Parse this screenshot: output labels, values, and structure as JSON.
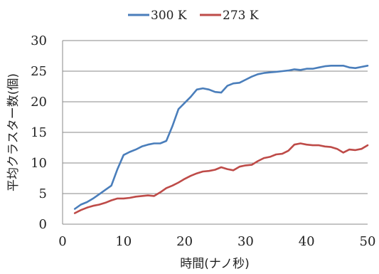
{
  "chart_data": {
    "type": "line",
    "title": "",
    "xlabel": "時間(ナノ秒)",
    "ylabel": "平均クラスター数(個)",
    "xlim": [
      0,
      50
    ],
    "ylim": [
      0,
      30
    ],
    "x_ticks": [
      "0",
      "10",
      "20",
      "30",
      "40",
      "50"
    ],
    "y_ticks": [
      "0",
      "5",
      "10",
      "15",
      "20",
      "25",
      "30"
    ],
    "grid": true,
    "legend_position": "top",
    "series": [
      {
        "name": "300 K",
        "color": "#4a7ebb",
        "points": [
          [
            2,
            2.5
          ],
          [
            3,
            3.2
          ],
          [
            4,
            3.6
          ],
          [
            5,
            4.2
          ],
          [
            6,
            4.9
          ],
          [
            7,
            5.6
          ],
          [
            8,
            6.3
          ],
          [
            9,
            9.0
          ],
          [
            10,
            11.3
          ],
          [
            11,
            11.8
          ],
          [
            12,
            12.2
          ],
          [
            13,
            12.7
          ],
          [
            14,
            13.0
          ],
          [
            15,
            13.2
          ],
          [
            16,
            13.2
          ],
          [
            17,
            13.6
          ],
          [
            18,
            16.0
          ],
          [
            19,
            18.8
          ],
          [
            20,
            19.8
          ],
          [
            21,
            20.8
          ],
          [
            22,
            22.0
          ],
          [
            23,
            22.2
          ],
          [
            24,
            22.0
          ],
          [
            25,
            21.6
          ],
          [
            26,
            21.5
          ],
          [
            27,
            22.6
          ],
          [
            28,
            23.0
          ],
          [
            29,
            23.1
          ],
          [
            30,
            23.6
          ],
          [
            31,
            24.1
          ],
          [
            32,
            24.5
          ],
          [
            33,
            24.7
          ],
          [
            34,
            24.8
          ],
          [
            35,
            24.9
          ],
          [
            36,
            25.0
          ],
          [
            37,
            25.1
          ],
          [
            38,
            25.3
          ],
          [
            39,
            25.2
          ],
          [
            40,
            25.4
          ],
          [
            41,
            25.4
          ],
          [
            42,
            25.6
          ],
          [
            43,
            25.8
          ],
          [
            44,
            25.9
          ],
          [
            45,
            25.9
          ],
          [
            46,
            25.9
          ],
          [
            47,
            25.6
          ],
          [
            48,
            25.5
          ],
          [
            49,
            25.7
          ],
          [
            50,
            25.9
          ]
        ]
      },
      {
        "name": "273 K",
        "color": "#be4b48",
        "points": [
          [
            2,
            1.8
          ],
          [
            3,
            2.3
          ],
          [
            4,
            2.7
          ],
          [
            5,
            3.0
          ],
          [
            6,
            3.2
          ],
          [
            7,
            3.5
          ],
          [
            8,
            3.9
          ],
          [
            9,
            4.2
          ],
          [
            10,
            4.2
          ],
          [
            11,
            4.3
          ],
          [
            12,
            4.5
          ],
          [
            13,
            4.6
          ],
          [
            14,
            4.7
          ],
          [
            15,
            4.6
          ],
          [
            16,
            5.2
          ],
          [
            17,
            5.9
          ],
          [
            18,
            6.3
          ],
          [
            19,
            6.8
          ],
          [
            20,
            7.4
          ],
          [
            21,
            7.9
          ],
          [
            22,
            8.3
          ],
          [
            23,
            8.6
          ],
          [
            24,
            8.7
          ],
          [
            25,
            8.9
          ],
          [
            26,
            9.3
          ],
          [
            27,
            9.0
          ],
          [
            28,
            8.8
          ],
          [
            29,
            9.4
          ],
          [
            30,
            9.6
          ],
          [
            31,
            9.7
          ],
          [
            32,
            10.3
          ],
          [
            33,
            10.8
          ],
          [
            34,
            11.0
          ],
          [
            35,
            11.4
          ],
          [
            36,
            11.5
          ],
          [
            37,
            12.0
          ],
          [
            38,
            13.0
          ],
          [
            39,
            13.2
          ],
          [
            40,
            13.0
          ],
          [
            41,
            12.9
          ],
          [
            42,
            12.9
          ],
          [
            43,
            12.7
          ],
          [
            44,
            12.6
          ],
          [
            45,
            12.3
          ],
          [
            46,
            11.7
          ],
          [
            47,
            12.2
          ],
          [
            48,
            12.1
          ],
          [
            49,
            12.3
          ],
          [
            50,
            12.9
          ]
        ]
      }
    ]
  }
}
